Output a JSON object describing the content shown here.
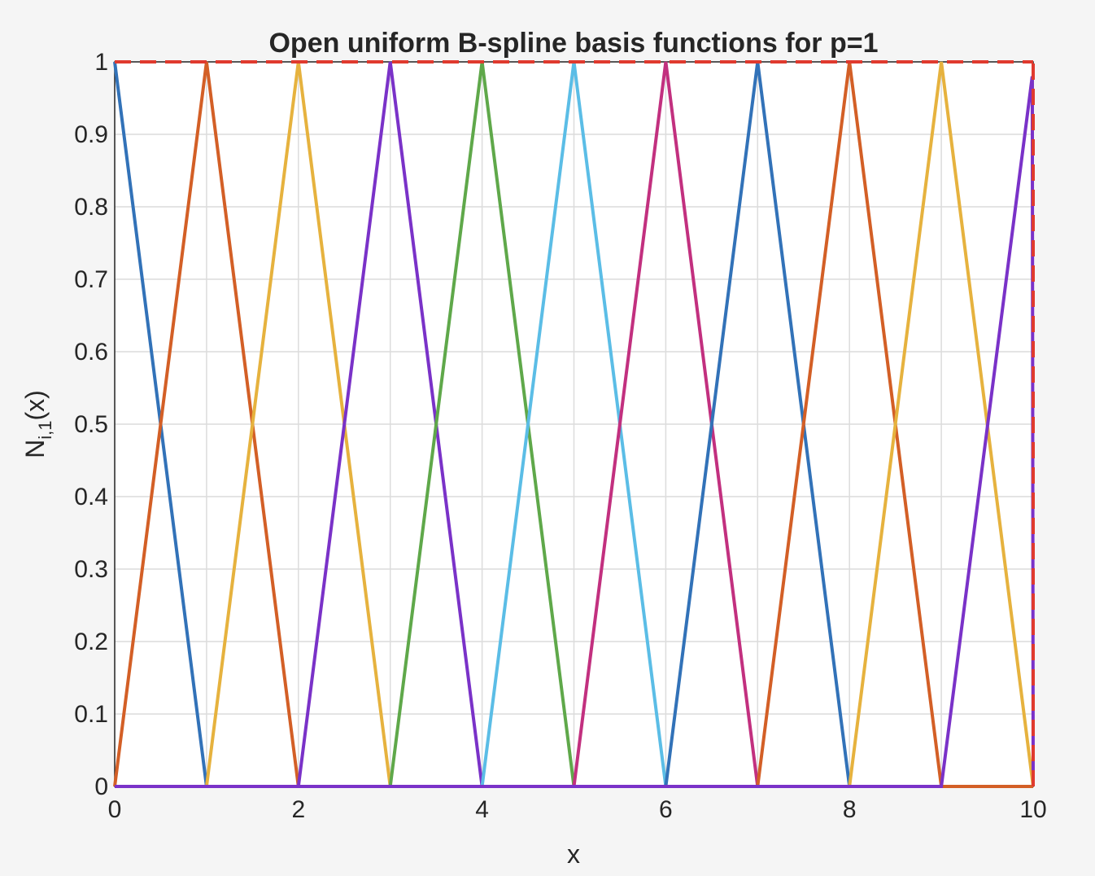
{
  "chart_data": {
    "type": "line",
    "title": "Open uniform B-spline basis functions for p=1",
    "xlabel": "x",
    "ylabel": {
      "base": "N",
      "subscript": "i,1",
      "suffix": "(x)"
    },
    "xlim": [
      0,
      10
    ],
    "ylim": [
      0,
      1
    ],
    "xticks": [
      0,
      2,
      4,
      6,
      8,
      10
    ],
    "xtick_labels": [
      "0",
      "2",
      "4",
      "6",
      "8",
      "10"
    ],
    "yticks": [
      0,
      0.1,
      0.2,
      0.3,
      0.4,
      0.5,
      0.6,
      0.7,
      0.8,
      0.9,
      1
    ],
    "ytick_labels": [
      "0",
      "0.1",
      "0.2",
      "0.3",
      "0.4",
      "0.5",
      "0.6",
      "0.7",
      "0.8",
      "0.9",
      "1"
    ],
    "grid": true,
    "grid_minor_x": [
      1,
      3,
      5,
      7,
      9
    ],
    "series": [
      {
        "color": "#3272b8",
        "x": [
          0,
          1,
          10
        ],
        "y": [
          1,
          0,
          0
        ]
      },
      {
        "color": "#d35f26",
        "x": [
          0,
          1,
          2,
          10
        ],
        "y": [
          0,
          1,
          0,
          0
        ]
      },
      {
        "color": "#e6b23e",
        "x": [
          0,
          1,
          2,
          3,
          10
        ],
        "y": [
          0,
          0,
          1,
          0,
          0
        ]
      },
      {
        "color": "#7a32c8",
        "x": [
          0,
          2,
          3,
          4,
          10
        ],
        "y": [
          0,
          0,
          1,
          0,
          0
        ]
      },
      {
        "color": "#5fa84a",
        "x": [
          0,
          3,
          4,
          5,
          10
        ],
        "y": [
          0,
          0,
          1,
          0,
          0
        ]
      },
      {
        "color": "#5bbde6",
        "x": [
          0,
          4,
          5,
          6,
          10
        ],
        "y": [
          0,
          0,
          1,
          0,
          0
        ]
      },
      {
        "color": "#c2307f",
        "x": [
          0,
          5,
          6,
          7,
          10
        ],
        "y": [
          0,
          0,
          1,
          0,
          0
        ]
      },
      {
        "color": "#3272b8",
        "x": [
          0,
          6,
          7,
          8,
          10
        ],
        "y": [
          0,
          0,
          1,
          0,
          0
        ]
      },
      {
        "color": "#d35f26",
        "x": [
          0,
          7,
          8,
          9,
          10
        ],
        "y": [
          0,
          0,
          1,
          0,
          0
        ]
      },
      {
        "color": "#e6b23e",
        "x": [
          0,
          8,
          9,
          10
        ],
        "y": [
          0,
          0,
          1,
          0
        ]
      },
      {
        "color": "#7a32c8",
        "x": [
          0,
          9,
          9.99,
          10
        ],
        "y": [
          0,
          0,
          0.98,
          0
        ]
      }
    ],
    "reference_lines": [
      {
        "color": "#e03a2e",
        "dashed": true,
        "x": [
          0,
          10
        ],
        "y": [
          1,
          1
        ]
      },
      {
        "color": "#e03a2e",
        "dashed": true,
        "x": [
          10,
          10
        ],
        "y": [
          0,
          1
        ]
      }
    ]
  }
}
